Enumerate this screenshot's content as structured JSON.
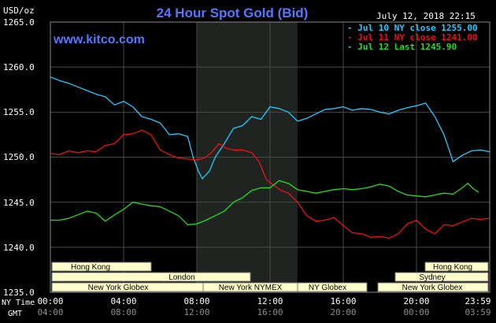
{
  "header": {
    "unit": "USD/oz",
    "title": "24 Hour Spot Gold (Bid)",
    "date": "July 12, 2018 22:15",
    "website": "www.kitco.com"
  },
  "legend": [
    {
      "text": "- Jul 10 NY close 1255.00",
      "color": "#22ccff"
    },
    {
      "text": "- Jul 11 NY close 1241.00",
      "color": "#ee1111"
    },
    {
      "text": "- Jul 12 Last 1245.90",
      "color": "#22dd22"
    }
  ],
  "axes": {
    "row_label_ny": "NY Time",
    "row_label_gmt": "GMT",
    "ny_ticks": [
      "00:00",
      "04:00",
      "08:00",
      "12:00",
      "16:00",
      "20:00",
      "23:59"
    ],
    "gmt_ticks": [
      "04:00",
      "08:00",
      "12:00",
      "16:00",
      "20:00",
      "00:00",
      "03:59"
    ],
    "y_ticks": [
      "1265.0",
      "1260.0",
      "1255.0",
      "1250.0",
      "1245.0",
      "1240.0",
      "1235.0"
    ]
  },
  "markets": {
    "hong_kong_1": "Hong Kong",
    "london": "London",
    "ny_globex_1": "New York Globex",
    "ny_nymex": "New York NYMEX",
    "ny_globex_2": "NY Globex",
    "hong_kong_2": "Hong Kong",
    "sydney": "Sydney",
    "ny_globex_3": "New York Globex"
  },
  "colors": {
    "background": "#000000",
    "grid": "#4a4a4a",
    "highlight": "#202420",
    "text": "#ffffff",
    "title": "#5577ff",
    "market_box": "#ffffcc",
    "series_jul10": "#22ccff",
    "series_jul11": "#ee1111",
    "series_jul12": "#22dd22"
  },
  "chart_data": {
    "type": "line",
    "title": "24 Hour Spot Gold (Bid)",
    "ylabel": "USD/oz",
    "xlabel": "",
    "ylim": [
      1235,
      1265
    ],
    "xlim": [
      0,
      24
    ],
    "grid": true,
    "legend_position": "top-right",
    "highlight_range": [
      8,
      13.5
    ],
    "series": [
      {
        "name": "Jul 10 NY close 1255.00",
        "color": "#22ccff",
        "points": [
          [
            0,
            1258.9
          ],
          [
            0.5,
            1258.5
          ],
          [
            1,
            1258.2
          ],
          [
            1.5,
            1257.8
          ],
          [
            2,
            1257.4
          ],
          [
            2.5,
            1257.0
          ],
          [
            3,
            1256.7
          ],
          [
            3.5,
            1255.8
          ],
          [
            4,
            1256.2
          ],
          [
            4.5,
            1255.6
          ],
          [
            5,
            1254.5
          ],
          [
            5.5,
            1254.2
          ],
          [
            6,
            1253.8
          ],
          [
            6.5,
            1252.5
          ],
          [
            7,
            1252.6
          ],
          [
            7.5,
            1252.3
          ],
          [
            7.8,
            1250.0
          ],
          [
            8.1,
            1248.4
          ],
          [
            8.3,
            1247.6
          ],
          [
            8.7,
            1248.5
          ],
          [
            9,
            1250.0
          ],
          [
            9.5,
            1251.5
          ],
          [
            10,
            1253.2
          ],
          [
            10.5,
            1253.5
          ],
          [
            11,
            1254.5
          ],
          [
            11.5,
            1254.2
          ],
          [
            12,
            1255.6
          ],
          [
            12.5,
            1255.4
          ],
          [
            13,
            1255.0
          ],
          [
            13.5,
            1254.0
          ],
          [
            14,
            1254.3
          ],
          [
            14.5,
            1254.8
          ],
          [
            15,
            1255.3
          ],
          [
            15.5,
            1255.4
          ],
          [
            16,
            1255.6
          ],
          [
            16.5,
            1255.2
          ],
          [
            17,
            1255.4
          ],
          [
            17.5,
            1255.3
          ],
          [
            18,
            1255.0
          ],
          [
            18.5,
            1254.8
          ],
          [
            19,
            1255.2
          ],
          [
            19.5,
            1255.5
          ],
          [
            20,
            1255.7
          ],
          [
            20.5,
            1256.0
          ],
          [
            21,
            1254.5
          ],
          [
            21.5,
            1252.5
          ],
          [
            22,
            1249.5
          ],
          [
            22.5,
            1250.2
          ],
          [
            23,
            1250.7
          ],
          [
            23.5,
            1250.8
          ],
          [
            24,
            1250.6
          ]
        ]
      },
      {
        "name": "Jul 11 NY close 1241.00",
        "color": "#ee1111",
        "points": [
          [
            0,
            1250.4
          ],
          [
            0.5,
            1250.3
          ],
          [
            1,
            1250.7
          ],
          [
            1.5,
            1250.5
          ],
          [
            2,
            1250.7
          ],
          [
            2.5,
            1250.6
          ],
          [
            3,
            1251.3
          ],
          [
            3.5,
            1251.5
          ],
          [
            4,
            1252.5
          ],
          [
            4.5,
            1252.6
          ],
          [
            5,
            1253.0
          ],
          [
            5.5,
            1252.5
          ],
          [
            6,
            1250.8
          ],
          [
            6.5,
            1250.3
          ],
          [
            7,
            1249.9
          ],
          [
            7.5,
            1249.8
          ],
          [
            8,
            1249.7
          ],
          [
            8.4,
            1249.9
          ],
          [
            8.8,
            1250.5
          ],
          [
            9.2,
            1251.5
          ],
          [
            9.6,
            1251.0
          ],
          [
            10,
            1250.8
          ],
          [
            10.5,
            1250.8
          ],
          [
            11,
            1250.5
          ],
          [
            11.4,
            1249.5
          ],
          [
            11.8,
            1247.5
          ],
          [
            12.2,
            1246.9
          ],
          [
            12.6,
            1246.3
          ],
          [
            13,
            1246.0
          ],
          [
            13.5,
            1245.0
          ],
          [
            14,
            1243.5
          ],
          [
            14.5,
            1242.9
          ],
          [
            15,
            1243.0
          ],
          [
            15.5,
            1243.3
          ],
          [
            16,
            1242.4
          ],
          [
            16.5,
            1241.6
          ],
          [
            17,
            1241.5
          ],
          [
            17.5,
            1241.1
          ],
          [
            18,
            1241.2
          ],
          [
            18.5,
            1241.0
          ],
          [
            19,
            1241.5
          ],
          [
            19.5,
            1242.6
          ],
          [
            20,
            1243.0
          ],
          [
            20.5,
            1242.0
          ],
          [
            21,
            1241.5
          ],
          [
            21.5,
            1242.5
          ],
          [
            22,
            1242.4
          ],
          [
            22.5,
            1242.8
          ],
          [
            23,
            1243.2
          ],
          [
            23.5,
            1243.1
          ],
          [
            24,
            1243.2
          ]
        ]
      },
      {
        "name": "Jul 12 Last 1245.90",
        "color": "#22dd22",
        "points": [
          [
            0,
            1243.0
          ],
          [
            0.5,
            1243.0
          ],
          [
            1,
            1243.2
          ],
          [
            1.5,
            1243.6
          ],
          [
            2,
            1244.0
          ],
          [
            2.5,
            1243.8
          ],
          [
            3,
            1242.9
          ],
          [
            3.5,
            1243.6
          ],
          [
            4,
            1244.2
          ],
          [
            4.5,
            1245.0
          ],
          [
            5,
            1244.8
          ],
          [
            5.5,
            1244.6
          ],
          [
            6,
            1244.5
          ],
          [
            6.5,
            1244.0
          ],
          [
            7,
            1243.5
          ],
          [
            7.5,
            1242.5
          ],
          [
            8,
            1242.6
          ],
          [
            8.5,
            1243.0
          ],
          [
            9,
            1243.5
          ],
          [
            9.5,
            1244.0
          ],
          [
            10,
            1245.0
          ],
          [
            10.5,
            1245.5
          ],
          [
            11,
            1246.3
          ],
          [
            11.5,
            1246.6
          ],
          [
            12,
            1246.6
          ],
          [
            12.5,
            1247.4
          ],
          [
            13,
            1247.1
          ],
          [
            13.5,
            1246.4
          ],
          [
            14,
            1246.2
          ],
          [
            14.5,
            1246.0
          ],
          [
            15,
            1246.2
          ],
          [
            15.5,
            1246.4
          ],
          [
            16,
            1246.5
          ],
          [
            16.5,
            1246.4
          ],
          [
            17,
            1246.5
          ],
          [
            17.5,
            1246.7
          ],
          [
            18,
            1247.0
          ],
          [
            18.5,
            1246.8
          ],
          [
            19,
            1246.2
          ],
          [
            19.5,
            1245.8
          ],
          [
            20,
            1245.7
          ],
          [
            20.5,
            1245.6
          ],
          [
            21,
            1245.8
          ],
          [
            21.5,
            1246.0
          ],
          [
            22,
            1245.9
          ],
          [
            22.5,
            1246.6
          ],
          [
            22.8,
            1247.1
          ],
          [
            23.1,
            1246.5
          ],
          [
            23.4,
            1246.1
          ]
        ]
      }
    ]
  }
}
